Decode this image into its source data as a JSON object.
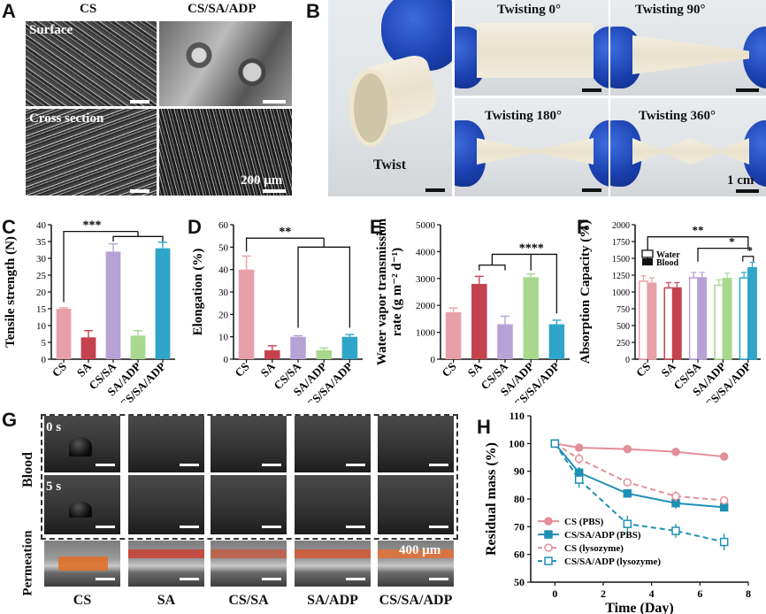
{
  "panels": {
    "A": {
      "label": "A",
      "col1": "CS",
      "col2": "CS/SA/ADP",
      "row1": "Surface",
      "row2": "Cross section",
      "scale": "200 μm"
    },
    "B": {
      "label": "B",
      "twist": "Twist",
      "t0": "Twisting 0°",
      "t90": "Twisting 90°",
      "t180": "Twisting 180°",
      "t360": "Twisting 360°",
      "scale": "1 cm"
    },
    "G": {
      "label": "G",
      "row_blood": "Blood",
      "row_perm": "Permeation",
      "t0": "0 s",
      "t5": "5 s",
      "scale": "400 μm",
      "cols": [
        "CS",
        "SA",
        "CS/SA",
        "SA/ADP",
        "CS/SA/ADP"
      ]
    }
  },
  "chart_data": [
    {
      "panel": "C",
      "type": "bar",
      "ylabel": "Tensile strength (N)",
      "ylim": [
        0,
        40
      ],
      "yticks": [
        0,
        5,
        10,
        15,
        20,
        25,
        30,
        35,
        40
      ],
      "categories": [
        "CS",
        "SA",
        "CS/SA",
        "SA/ADP",
        "CS/SA/ADP"
      ],
      "values": [
        15,
        6.5,
        32,
        7,
        33
      ],
      "errors": [
        0.3,
        2,
        2.3,
        1.5,
        1.8
      ],
      "colors": [
        "#e8a0a8",
        "#c4424e",
        "#b7a2d6",
        "#a8d88e",
        "#2fa6c9"
      ],
      "sig": [
        "***"
      ]
    },
    {
      "panel": "D",
      "type": "bar",
      "ylabel": "Elongation (%)",
      "ylim": [
        0,
        60
      ],
      "yticks": [
        0,
        10,
        20,
        30,
        40,
        50,
        60
      ],
      "categories": [
        "CS",
        "SA",
        "CS/SA",
        "SA/ADP",
        "CS/SA/ADP"
      ],
      "values": [
        40,
        4,
        10,
        4,
        10
      ],
      "errors": [
        6,
        2,
        0.5,
        1,
        1
      ],
      "colors": [
        "#e8a0a8",
        "#c4424e",
        "#b7a2d6",
        "#a8d88e",
        "#2fa6c9"
      ],
      "sig": [
        "**"
      ]
    },
    {
      "panel": "E",
      "type": "bar",
      "ylabel": "Water vapor transmission",
      "ylabel2": "rate (g m⁻² d⁻¹)",
      "ylim": [
        0,
        5000
      ],
      "yticks": [
        0,
        1000,
        2000,
        3000,
        4000,
        5000
      ],
      "categories": [
        "CS",
        "SA",
        "CS/SA",
        "SA/ADP",
        "CS/SA/ADP"
      ],
      "values": [
        1750,
        2800,
        1300,
        3050,
        1300
      ],
      "errors": [
        150,
        280,
        300,
        120,
        150
      ],
      "colors": [
        "#e8a0a8",
        "#c4424e",
        "#b7a2d6",
        "#a8d88e",
        "#2fa6c9"
      ],
      "sig": [
        "****"
      ]
    },
    {
      "panel": "F",
      "type": "bar",
      "ylabel": "Absorption Capacity (%)",
      "ylim": [
        0,
        2000
      ],
      "yticks": [
        0,
        250,
        500,
        750,
        1000,
        1250,
        1500,
        1750,
        2000
      ],
      "categories": [
        "CS",
        "SA",
        "CS/SA",
        "SA/ADP",
        "CS/SA/ADP"
      ],
      "series": [
        {
          "name": "Water",
          "values": [
            1160,
            1060,
            1210,
            1100,
            1210
          ]
        },
        {
          "name": "Blood",
          "values": [
            1130,
            1060,
            1210,
            1200,
            1360
          ]
        }
      ],
      "colors": [
        "#e8a0a8",
        "#c4424e",
        "#b7a2d6",
        "#a8d88e",
        "#2fa6c9"
      ],
      "sig": [
        "**",
        "*",
        "*"
      ]
    },
    {
      "panel": "H",
      "type": "line",
      "xlabel": "Time (Day)",
      "ylabel": "Residual mass (%)",
      "xlim": [
        -1,
        8
      ],
      "ylim": [
        50,
        110
      ],
      "xticks": [
        0,
        2,
        4,
        6,
        8
      ],
      "yticks": [
        50,
        60,
        70,
        80,
        90,
        100,
        110
      ],
      "x": [
        0,
        1,
        3,
        5,
        7
      ],
      "series": [
        {
          "name": "CS (PBS)",
          "values": [
            100,
            98.5,
            98,
            97,
            95.3
          ],
          "errors": [
            0.3,
            1,
            1.5,
            1.5,
            0.5
          ],
          "color": "#e38f9a",
          "dash": false,
          "filled": true,
          "marker": "circle"
        },
        {
          "name": "CS/SA/ADP (PBS)",
          "values": [
            100,
            89.5,
            82,
            78.5,
            77
          ],
          "errors": [
            0.3,
            2,
            1.5,
            2,
            1.5
          ],
          "color": "#1f8fb6",
          "dash": false,
          "filled": true,
          "marker": "square"
        },
        {
          "name": "CS (lysozyme)",
          "values": [
            100,
            94.5,
            86,
            81,
            79.5
          ],
          "errors": [
            0.3,
            2,
            1.5,
            2,
            1
          ],
          "color": "#e38f9a",
          "dash": true,
          "filled": false,
          "marker": "circle"
        },
        {
          "name": "CS/SA/ADP (lysozyme)",
          "values": [
            100,
            87,
            71,
            68.5,
            64.5
          ],
          "errors": [
            0.3,
            3,
            3,
            2.5,
            3
          ],
          "color": "#1f8fb6",
          "dash": true,
          "filled": false,
          "marker": "square"
        }
      ]
    }
  ]
}
